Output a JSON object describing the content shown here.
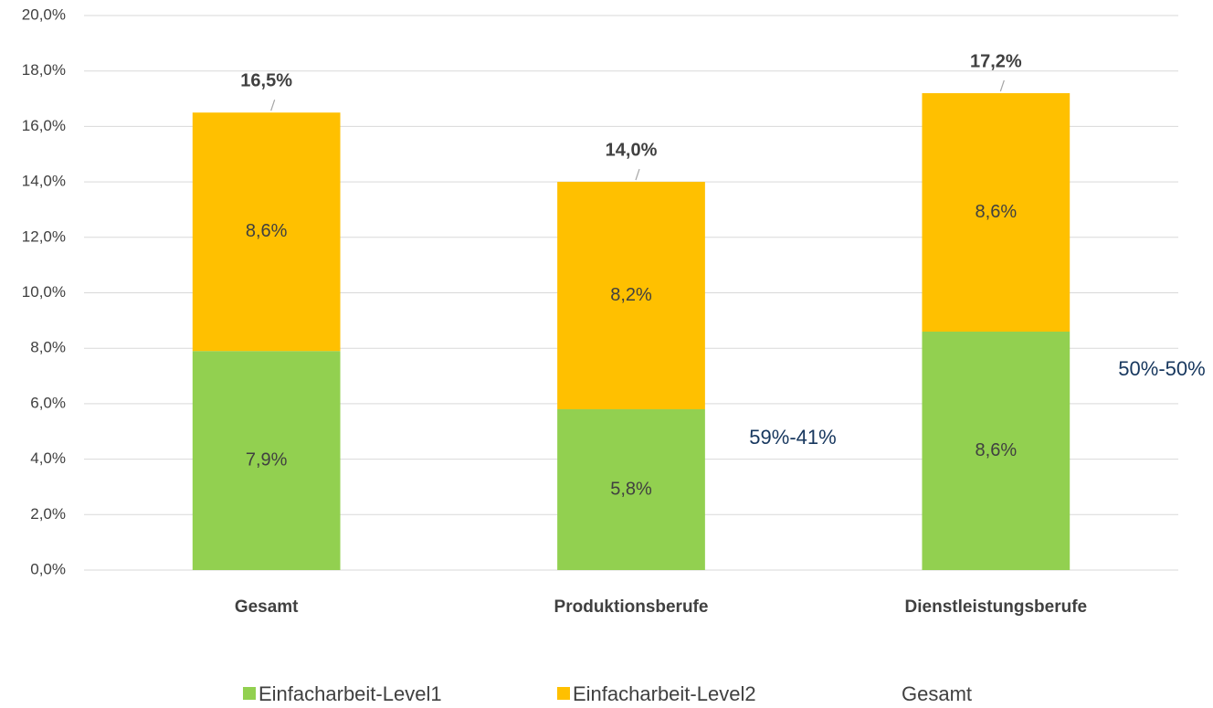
{
  "chart_data": {
    "type": "stacked_bar",
    "categories": [
      "Gesamt",
      "Produktionsberufe",
      "Dienstleistungsberufe"
    ],
    "series": [
      {
        "name": "Einfacharbeit-Level1",
        "color": "#92d050",
        "values": [
          7.9,
          5.8,
          8.6
        ],
        "value_labels": [
          "7,9%",
          "5,8%",
          "8,6%"
        ]
      },
      {
        "name": "Einfacharbeit-Level2",
        "color": "#ffc000",
        "values": [
          8.6,
          8.2,
          8.6
        ],
        "value_labels": [
          "8,6%",
          "8,2%",
          "8,6%"
        ]
      },
      {
        "name": "Gesamt",
        "type": "total",
        "values": [
          16.5,
          14.0,
          17.2
        ],
        "value_labels": [
          "16,5%",
          "14,0%",
          "17,2%"
        ]
      }
    ],
    "ylim": [
      0,
      20
    ],
    "yticks": [
      {
        "value": 0,
        "label": "0,0%"
      },
      {
        "value": 2,
        "label": "2,0%"
      },
      {
        "value": 4,
        "label": "4,0%"
      },
      {
        "value": 6,
        "label": "6,0%"
      },
      {
        "value": 8,
        "label": "8,0%"
      },
      {
        "value": 10,
        "label": "10,0%"
      },
      {
        "value": 12,
        "label": "12,0%"
      },
      {
        "value": 14,
        "label": "14,0%"
      },
      {
        "value": 16,
        "label": "16,0%"
      },
      {
        "value": 18,
        "label": "18,0%"
      },
      {
        "value": 20,
        "label": "20,0%"
      }
    ],
    "grid": true,
    "annotations": [
      "59%-41%",
      "50%-50%"
    ]
  }
}
